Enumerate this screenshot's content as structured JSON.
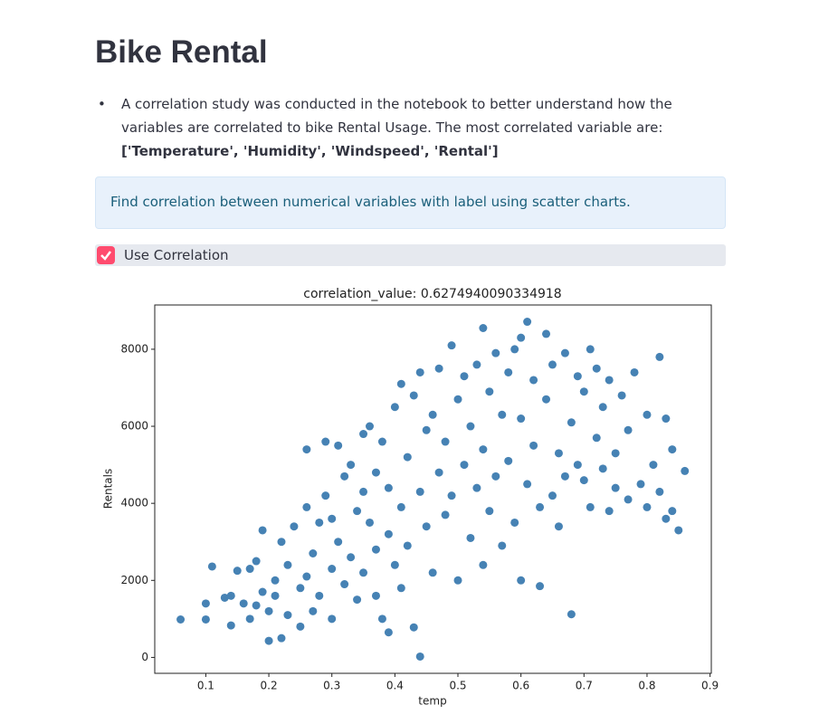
{
  "header": {
    "title": "Bike Rental"
  },
  "bullet": {
    "text": "A correlation study was conducted in the notebook to better understand how the variables are correlated to bike Rental Usage. The most correlated variable are:",
    "bold": "['Temperature', 'Humidity', 'Windspeed', 'Rental']"
  },
  "info": {
    "text": "Find correlation between numerical variables with label using scatter charts."
  },
  "checkbox": {
    "label": "Use Correlation",
    "checked": true
  },
  "chart_data": {
    "type": "scatter",
    "title": "correlation_value: 0.6274940090334918",
    "x_label": "temp",
    "y_label": "Rentals",
    "color": "#4682b4",
    "xlim": [
      0.019,
      0.902
    ],
    "ylim": [
      -413,
      9149
    ],
    "xticks": [
      0.1,
      0.2,
      0.3,
      0.4,
      0.5,
      0.6,
      0.7,
      0.8,
      0.9
    ],
    "yticks": [
      0,
      2000,
      4000,
      6000,
      8000
    ],
    "series": [
      {
        "name": "Rentals",
        "x": [
          0.06,
          0.1,
          0.1,
          0.11,
          0.13,
          0.14,
          0.14,
          0.15,
          0.16,
          0.17,
          0.17,
          0.18,
          0.18,
          0.19,
          0.19,
          0.2,
          0.2,
          0.21,
          0.21,
          0.22,
          0.22,
          0.23,
          0.23,
          0.24,
          0.25,
          0.25,
          0.26,
          0.26,
          0.26,
          0.27,
          0.27,
          0.28,
          0.28,
          0.29,
          0.29,
          0.3,
          0.3,
          0.3,
          0.31,
          0.31,
          0.32,
          0.32,
          0.33,
          0.33,
          0.34,
          0.34,
          0.35,
          0.35,
          0.35,
          0.36,
          0.36,
          0.37,
          0.37,
          0.37,
          0.38,
          0.38,
          0.39,
          0.39,
          0.39,
          0.4,
          0.4,
          0.41,
          0.41,
          0.41,
          0.42,
          0.42,
          0.43,
          0.43,
          0.44,
          0.44,
          0.44,
          0.45,
          0.45,
          0.46,
          0.46,
          0.47,
          0.47,
          0.48,
          0.48,
          0.49,
          0.49,
          0.5,
          0.5,
          0.51,
          0.51,
          0.52,
          0.52,
          0.53,
          0.53,
          0.54,
          0.54,
          0.54,
          0.55,
          0.55,
          0.56,
          0.56,
          0.57,
          0.57,
          0.58,
          0.58,
          0.59,
          0.59,
          0.6,
          0.6,
          0.6,
          0.61,
          0.61,
          0.62,
          0.62,
          0.63,
          0.63,
          0.64,
          0.64,
          0.65,
          0.65,
          0.66,
          0.66,
          0.67,
          0.67,
          0.68,
          0.68,
          0.69,
          0.69,
          0.7,
          0.7,
          0.71,
          0.71,
          0.72,
          0.72,
          0.73,
          0.73,
          0.74,
          0.74,
          0.75,
          0.75,
          0.76,
          0.77,
          0.77,
          0.78,
          0.79,
          0.8,
          0.8,
          0.81,
          0.82,
          0.82,
          0.83,
          0.83,
          0.84,
          0.84,
          0.85,
          0.86
        ],
        "values": [
          985,
          986,
          1400,
          2360,
          1550,
          1600,
          830,
          2250,
          1400,
          1000,
          2300,
          1350,
          2500,
          1700,
          3300,
          430,
          1200,
          1600,
          2000,
          3000,
          500,
          1100,
          2400,
          3400,
          800,
          1800,
          2100,
          3900,
          5400,
          1200,
          2700,
          3500,
          1600,
          5600,
          4200,
          1000,
          2300,
          3600,
          5500,
          3000,
          1900,
          4700,
          2600,
          5000,
          3800,
          1500,
          4300,
          2200,
          5800,
          6000,
          3500,
          1600,
          2800,
          4800,
          5600,
          1000,
          3200,
          4400,
          650,
          6500,
          2400,
          7100,
          3900,
          1800,
          5200,
          2900,
          6800,
          780,
          22,
          7400,
          4300,
          5900,
          3400,
          6300,
          2200,
          4800,
          7500,
          3700,
          5600,
          8100,
          4200,
          6700,
          2000,
          5000,
          7300,
          3100,
          6000,
          7600,
          4400,
          8550,
          5400,
          2400,
          6900,
          3800,
          7900,
          4700,
          6300,
          2900,
          7400,
          5100,
          8000,
          3500,
          8300,
          6200,
          2000,
          8714,
          4500,
          7200,
          5500,
          3900,
          1850,
          8400,
          6700,
          4200,
          7600,
          5300,
          3400,
          7900,
          4700,
          6100,
          1120,
          7300,
          5000,
          4600,
          6900,
          8000,
          3900,
          5700,
          7500,
          4900,
          6500,
          3800,
          7200,
          5300,
          4400,
          6800,
          4100,
          5900,
          7400,
          4500,
          6300,
          3900,
          5000,
          4300,
          7800,
          3600,
          6200,
          5400,
          3800,
          3300,
          4840
        ]
      }
    ]
  }
}
